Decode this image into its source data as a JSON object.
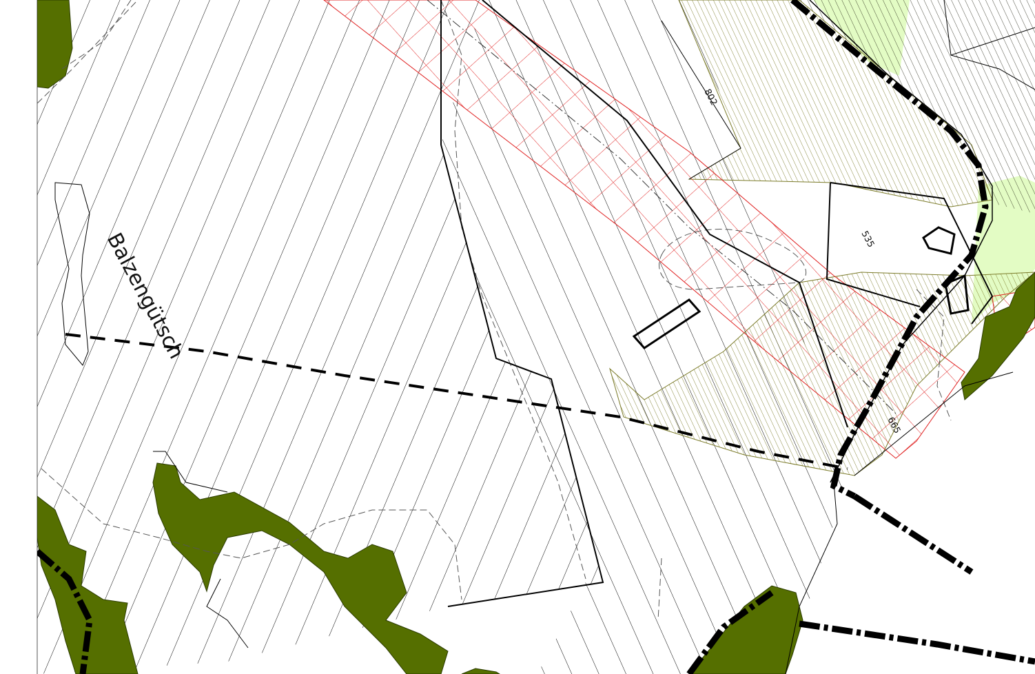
{
  "map": {
    "place_label": "Balzengütsch",
    "parcel_numbers": [
      "802",
      "535",
      "665"
    ],
    "colors": {
      "forest": "#556f00",
      "meadow": "#e3fcc4",
      "hatch_olive": "#7a7a28",
      "grid_red": "#e02020",
      "line": "#000000"
    }
  }
}
